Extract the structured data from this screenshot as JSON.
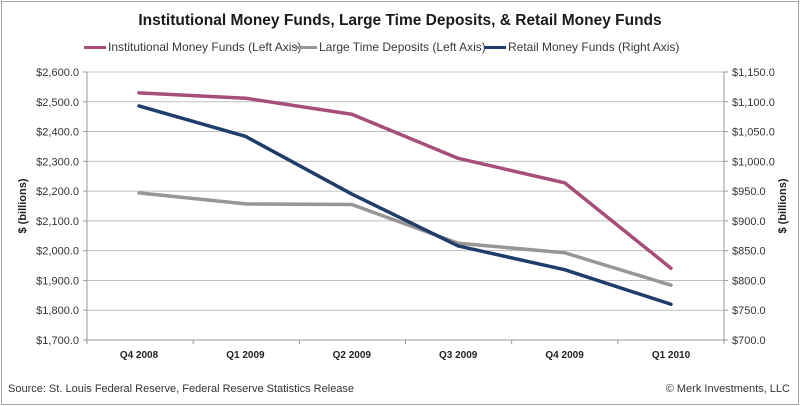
{
  "chart_data": {
    "type": "line",
    "title": "Institutional Money Funds, Large Time Deposits, & Retail Money Funds",
    "categories": [
      "Q4 2008",
      "Q1 2009",
      "Q2 2009",
      "Q3 2009",
      "Q4 2009",
      "Q1 2010"
    ],
    "xlabel": "",
    "ylabel_left": "$ (billions)",
    "ylabel_right": "$ (billions)",
    "ylim_left": [
      1700,
      2600
    ],
    "ylim_right": [
      700,
      1150
    ],
    "yticks_left": [
      "$1,700.0",
      "$1,800.0",
      "$1,900.0",
      "$2,000.0",
      "$2,100.0",
      "$2,200.0",
      "$2,300.0",
      "$2,400.0",
      "$2,500.0",
      "$2,600.0"
    ],
    "yticks_right": [
      "$700.0",
      "$750.0",
      "$800.0",
      "$850.0",
      "$900.0",
      "$950.0",
      "$1,000.0",
      "$1,050.0",
      "$1,100.0",
      "$1,150.0"
    ],
    "grid": true,
    "legend_position": "top",
    "series": [
      {
        "name": "Institutional Money Funds (Left Axis)",
        "axis": "left",
        "color": "#a64d79",
        "values": [
          2530,
          2512,
          2458,
          2310,
          2228,
          1941
        ]
      },
      {
        "name": "Large Time Deposits (Left Axis)",
        "axis": "left",
        "color": "#969696",
        "values": [
          2194,
          2157,
          2155,
          2025,
          1993,
          1884
        ]
      },
      {
        "name": "Retail Money Funds (Right Axis)",
        "axis": "right",
        "color": "#1f3d6b",
        "values": [
          1093,
          1042,
          945,
          858,
          818,
          760
        ]
      }
    ]
  },
  "footer": {
    "source": "Source: St. Louis Federal Reserve, Federal Reserve Statistics Release",
    "copyright": "© Merk Investments, LLC"
  }
}
